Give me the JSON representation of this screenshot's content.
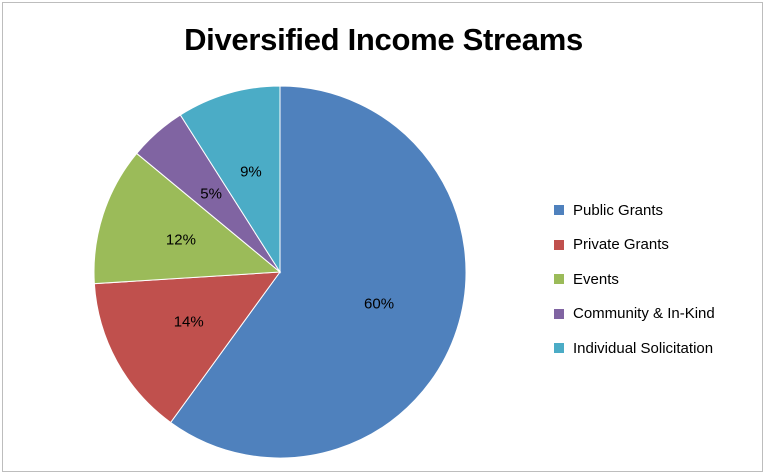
{
  "chart_data": {
    "type": "pie",
    "title": "Diversified Income Streams",
    "categories": [
      "Public Grants",
      "Private Grants",
      "Events",
      "Community & In-Kind",
      "Individual Solicitation"
    ],
    "values": [
      60,
      14,
      12,
      5,
      9
    ],
    "data_labels": [
      "60%",
      "14%",
      "12%",
      "5%",
      "9%"
    ],
    "colors": [
      "#4f81bd",
      "#c0504d",
      "#9bbb59",
      "#8064a2",
      "#4bacc6"
    ],
    "legend_position": "right",
    "start_angle_deg": 0,
    "direction": "clockwise"
  }
}
